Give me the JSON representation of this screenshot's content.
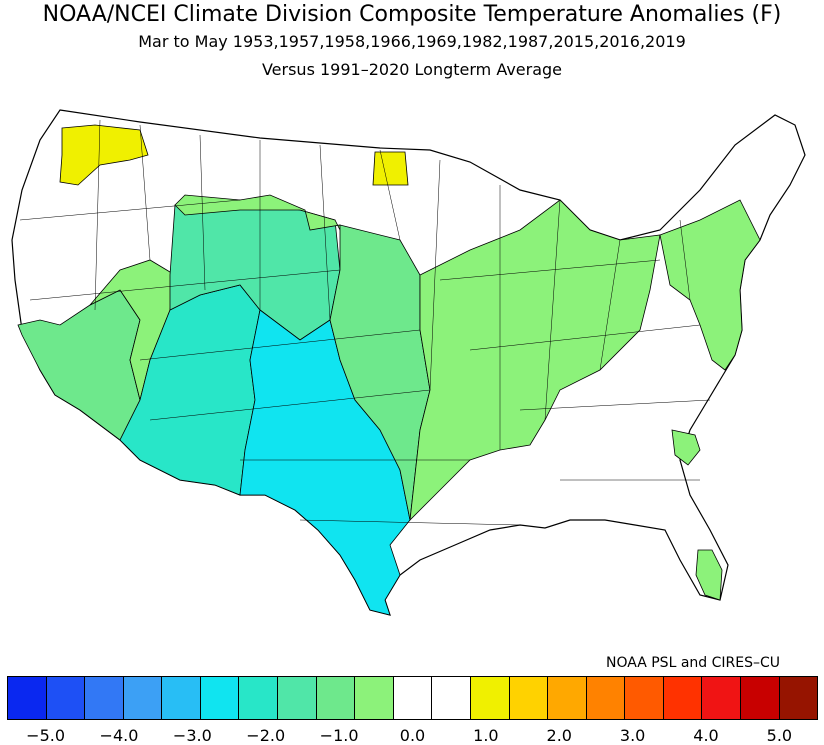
{
  "title": "NOAA/NCEI Climate Division Composite Temperature Anomalies (F)",
  "subtitle": "Mar to May  1953,1957,1958,1966,1969,1982,1987,2015,2016,2019",
  "baseline": "Versus 1991–2020 Longterm Average",
  "credit": "NOAA PSL and CIRES–CU",
  "legend": {
    "colors": [
      "#0a28f0",
      "#1e50f5",
      "#3278f5",
      "#3ca0f5",
      "#28beF5",
      "#10e4f0",
      "#28e6c8",
      "#50e6a8",
      "#6ee88c",
      "#8cf27a",
      "#ffffff",
      "#ffffff",
      "#f0f000",
      "#ffd200",
      "#ffa800",
      "#ff8200",
      "#ff5a00",
      "#ff3200",
      "#f01414",
      "#c80000",
      "#961400"
    ],
    "ticks": [
      "−5.0",
      "−4.0",
      "−3.0",
      "−2.0",
      "−1.0",
      "0.0",
      "1.0",
      "2.0",
      "3.0",
      "4.0",
      "5.0"
    ]
  },
  "map_colors": {
    "none": "#ffffff",
    "pos1": "#f0f000",
    "neg1": "#8cf27a",
    "neg15": "#6ee88c",
    "neg2": "#50e6a8",
    "neg25": "#28e6c8",
    "neg3": "#10e4f0"
  }
}
